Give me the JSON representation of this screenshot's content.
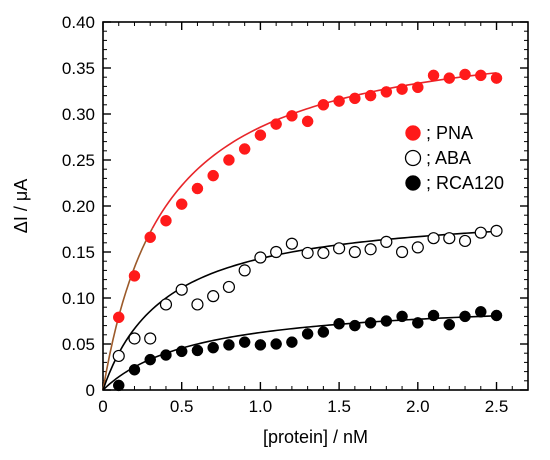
{
  "chart_data": {
    "type": "scatter",
    "xlabel": "[protein] / nM",
    "ylabel": "ΔI / μA",
    "xlim": [
      0,
      2.7
    ],
    "ylim": [
      0,
      0.4
    ],
    "x_ticks": [
      0,
      0.5,
      1.0,
      1.5,
      2.0,
      2.5
    ],
    "x_tick_labels": [
      "0",
      "0.5",
      "1.0",
      "1.5",
      "2.0",
      "2.5"
    ],
    "y_ticks": [
      0,
      0.05,
      0.1,
      0.15,
      0.2,
      0.25,
      0.3,
      0.35,
      0.4
    ],
    "y_tick_labels": [
      "0",
      "0.05",
      "0.10",
      "0.15",
      "0.20",
      "0.25",
      "0.30",
      "0.35",
      "0.40"
    ],
    "grid": false,
    "legend_position": "right",
    "series": [
      {
        "name": "; PNA",
        "marker": "filled-circle",
        "color": "#ff1a1a",
        "fit_color": "#e8262a",
        "fit_color_low": "#9c5a2a",
        "fit": {
          "model": "saturation",
          "max": 0.4,
          "k": 0.4
        },
        "x": [
          0.1,
          0.2,
          0.3,
          0.4,
          0.5,
          0.6,
          0.7,
          0.8,
          0.9,
          1.0,
          1.1,
          1.2,
          1.3,
          1.4,
          1.5,
          1.6,
          1.7,
          1.8,
          1.9,
          2.0,
          2.1,
          2.2,
          2.3,
          2.4,
          2.5
        ],
        "y": [
          0.079,
          0.124,
          0.166,
          0.184,
          0.202,
          0.219,
          0.233,
          0.25,
          0.262,
          0.277,
          0.289,
          0.298,
          0.292,
          0.31,
          0.314,
          0.317,
          0.32,
          0.324,
          0.327,
          0.329,
          0.342,
          0.339,
          0.343,
          0.342,
          0.339
        ]
      },
      {
        "name": "; ABA",
        "marker": "open-circle",
        "color": "#000000",
        "fit_color": "#000000",
        "fit": {
          "model": "saturation",
          "max": 0.2,
          "k": 0.4
        },
        "x": [
          0.1,
          0.2,
          0.3,
          0.4,
          0.5,
          0.6,
          0.7,
          0.8,
          0.9,
          1.0,
          1.1,
          1.2,
          1.3,
          1.4,
          1.5,
          1.6,
          1.7,
          1.8,
          1.9,
          2.0,
          2.1,
          2.2,
          2.3,
          2.4,
          2.5
        ],
        "y": [
          0.037,
          0.056,
          0.056,
          0.093,
          0.109,
          0.093,
          0.102,
          0.112,
          0.13,
          0.144,
          0.15,
          0.159,
          0.149,
          0.149,
          0.154,
          0.15,
          0.153,
          0.161,
          0.15,
          0.155,
          0.165,
          0.165,
          0.162,
          0.171,
          0.173
        ]
      },
      {
        "name": "; RCA120",
        "marker": "filled-circle",
        "color": "#000000",
        "fit_color": "#000000",
        "fit": {
          "model": "saturation",
          "max": 0.1,
          "k": 0.6
        },
        "x": [
          0.1,
          0.2,
          0.3,
          0.4,
          0.5,
          0.6,
          0.7,
          0.8,
          0.9,
          1.0,
          1.1,
          1.2,
          1.3,
          1.4,
          1.5,
          1.6,
          1.7,
          1.8,
          1.9,
          2.0,
          2.1,
          2.2,
          2.3,
          2.4,
          2.5
        ],
        "y": [
          0.005,
          0.022,
          0.033,
          0.038,
          0.042,
          0.043,
          0.046,
          0.049,
          0.052,
          0.049,
          0.05,
          0.052,
          0.061,
          0.063,
          0.072,
          0.07,
          0.073,
          0.075,
          0.08,
          0.073,
          0.081,
          0.071,
          0.08,
          0.085,
          0.081
        ]
      }
    ]
  }
}
